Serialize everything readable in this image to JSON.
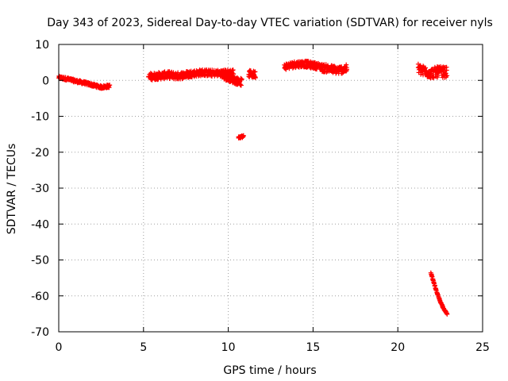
{
  "chart_data": {
    "type": "scatter",
    "title": "Day 343 of 2023, Sidereal Day-to-day VTEC variation (SDTVAR) for receiver nyls",
    "xlabel": "GPS time / hours",
    "ylabel": "SDTVAR / TECUs",
    "xlim": [
      0,
      25
    ],
    "ylim": [
      -70,
      10
    ],
    "xticks": [
      0,
      5,
      10,
      15,
      20,
      25
    ],
    "yticks": [
      10,
      0,
      -10,
      -20,
      -30,
      -40,
      -50,
      -60,
      -70
    ],
    "grid": true,
    "marker": "+",
    "color": "#ff0000",
    "series": [
      {
        "name": "SDTVAR",
        "segments": [
          {
            "x0": 0.0,
            "x1": 3.0,
            "y_points": [
              [
                0.0,
                0.8
              ],
              [
                0.5,
                0.4
              ],
              [
                1.0,
                -0.2
              ],
              [
                1.5,
                -0.7
              ],
              [
                2.0,
                -1.3
              ],
              [
                2.5,
                -1.9
              ],
              [
                3.0,
                -1.6
              ]
            ],
            "spread": 0.8
          },
          {
            "x0": 5.3,
            "x1": 7.8,
            "y_points": [
              [
                5.3,
                1.0
              ],
              [
                6.0,
                1.3
              ],
              [
                6.5,
                1.5
              ],
              [
                7.0,
                1.2
              ],
              [
                7.8,
                1.8
              ]
            ],
            "spread": 2.0
          },
          {
            "x0": 7.8,
            "x1": 10.3,
            "y_points": [
              [
                7.8,
                1.8
              ],
              [
                8.5,
                2.2
              ],
              [
                9.0,
                2.0
              ],
              [
                9.5,
                2.0
              ],
              [
                10.3,
                2.2
              ]
            ],
            "spread": 1.8
          },
          {
            "x0": 9.6,
            "x1": 10.8,
            "y_points": [
              [
                9.6,
                1.5
              ],
              [
                10.0,
                0.8
              ],
              [
                10.4,
                0.0
              ],
              [
                10.8,
                -0.5
              ]
            ],
            "spread": 2.0
          },
          {
            "x0": 11.2,
            "x1": 11.6,
            "y_points": [
              [
                11.2,
                1.8
              ],
              [
                11.6,
                1.6
              ]
            ],
            "spread": 2.0
          },
          {
            "x0": 10.6,
            "x1": 10.9,
            "y_points": [
              [
                10.6,
                -15.8
              ],
              [
                10.9,
                -15.6
              ]
            ],
            "spread": 0.6
          },
          {
            "x0": 13.3,
            "x1": 15.5,
            "y_points": [
              [
                13.3,
                3.8
              ],
              [
                14.0,
                4.5
              ],
              [
                14.5,
                4.6
              ],
              [
                15.0,
                4.2
              ],
              [
                15.5,
                3.8
              ]
            ],
            "spread": 1.8
          },
          {
            "x0": 15.5,
            "x1": 17.0,
            "y_points": [
              [
                15.5,
                3.5
              ],
              [
                16.0,
                3.2
              ],
              [
                16.5,
                2.8
              ],
              [
                17.0,
                3.3
              ]
            ],
            "spread": 2.2
          },
          {
            "x0": 21.2,
            "x1": 22.9,
            "y_points": [
              [
                21.2,
                3.2
              ],
              [
                21.6,
                2.4
              ],
              [
                22.0,
                2.0
              ],
              [
                22.4,
                2.4
              ],
              [
                22.9,
                2.2
              ]
            ],
            "spread": 3.0
          },
          {
            "x0": 21.95,
            "x1": 22.9,
            "y_points": [
              [
                21.95,
                -53.5
              ],
              [
                22.1,
                -56.0
              ],
              [
                22.3,
                -59.0
              ],
              [
                22.5,
                -61.5
              ],
              [
                22.7,
                -63.5
              ],
              [
                22.9,
                -65.0
              ]
            ],
            "spread": 0.3
          }
        ]
      }
    ]
  }
}
